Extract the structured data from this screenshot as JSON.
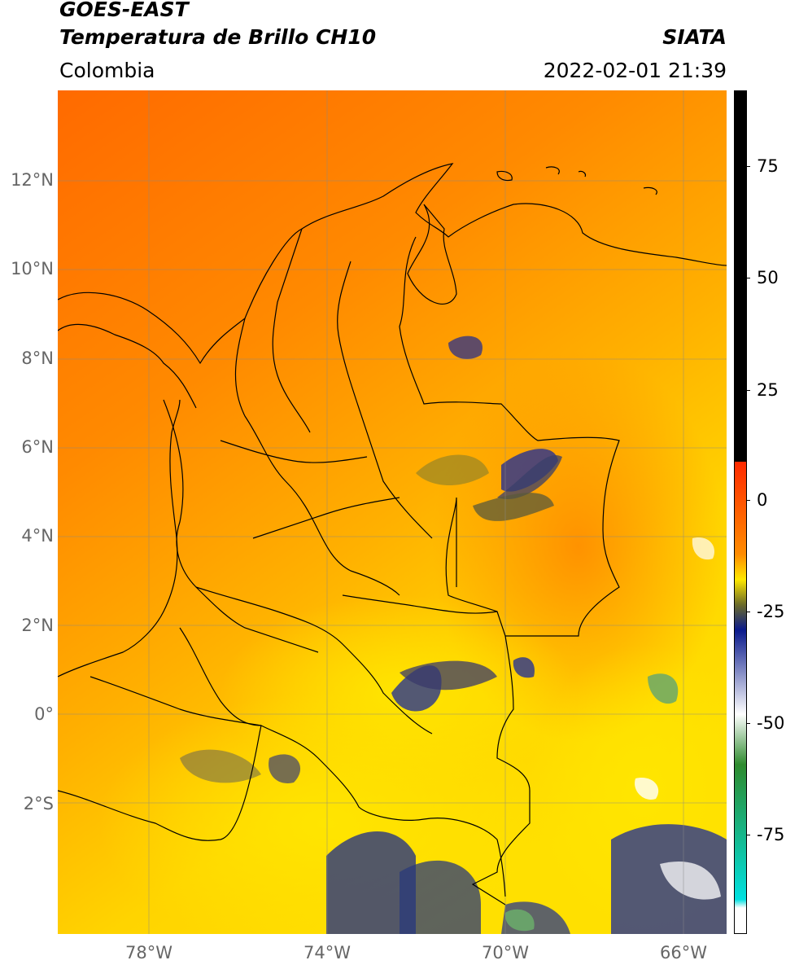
{
  "header": {
    "title_line1": "GOES-EAST",
    "title_line2": "Temperatura de Brillo CH10",
    "region": "Colombia",
    "source": "SIATA",
    "datetime": "2022-02-01 21:39"
  },
  "map": {
    "lat_labels": [
      "12°N",
      "10°N",
      "8°N",
      "6°N",
      "4°N",
      "2°N",
      "0°",
      "2°S"
    ],
    "lon_labels": [
      "78°W",
      "74°W",
      "70°W",
      "66°W"
    ]
  },
  "colorbar": {
    "tick_labels": [
      "75",
      "50",
      "25",
      "0",
      "-25",
      "-50",
      "-75"
    ],
    "colors": {
      "black": "#000000",
      "red": "#ff2a00",
      "orange": "#ff8c00",
      "yellow": "#ffe800",
      "olive": "#6b6b2a",
      "navy": "#0a1a8c",
      "white": "#ffffff",
      "green": "#2e8b2e",
      "cyan": "#00e0e0"
    }
  }
}
